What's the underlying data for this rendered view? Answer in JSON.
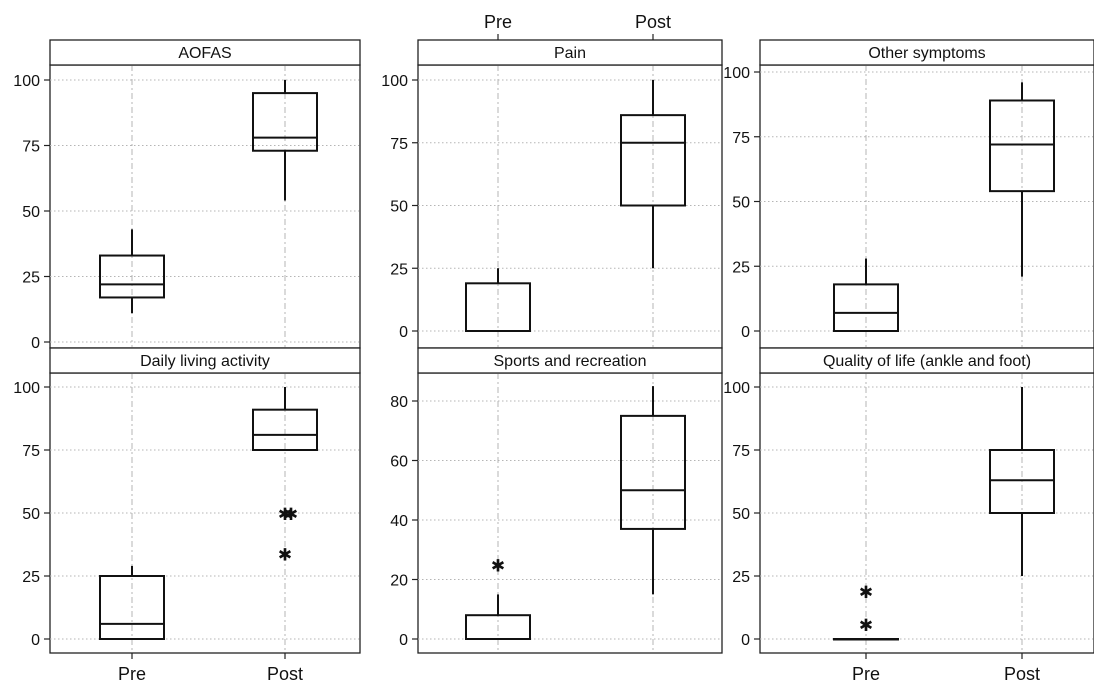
{
  "chart_data": [
    {
      "type": "box",
      "title": "AOFAS",
      "categories": [
        "Pre",
        "Post"
      ],
      "ylim": [
        0,
        100
      ],
      "yticks": [
        0,
        25,
        50,
        75,
        100
      ],
      "boxes": [
        {
          "category": "Pre",
          "min": 11,
          "q1": 17,
          "median": 22,
          "q3": 33,
          "max": 43,
          "outliers": []
        },
        {
          "category": "Post",
          "min": 54,
          "q1": 73,
          "median": 78,
          "q3": 95,
          "max": 100,
          "outliers": []
        }
      ]
    },
    {
      "type": "box",
      "title": "Pain",
      "categories": [
        "Pre",
        "Post"
      ],
      "ylim": [
        0,
        100
      ],
      "yticks": [
        0,
        25,
        50,
        75,
        100
      ],
      "boxes": [
        {
          "category": "Pre",
          "min": 0,
          "q1": 0,
          "median": 0,
          "q3": 19,
          "max": 25,
          "outliers": []
        },
        {
          "category": "Post",
          "min": 25,
          "q1": 50,
          "median": 75,
          "q3": 86,
          "max": 100,
          "outliers": []
        }
      ]
    },
    {
      "type": "box",
      "title": "Other symptoms",
      "categories": [
        "Pre",
        "Post"
      ],
      "ylim": [
        0,
        100
      ],
      "yticks": [
        0,
        25,
        50,
        75,
        100
      ],
      "boxes": [
        {
          "category": "Pre",
          "min": 0,
          "q1": 0,
          "median": 7,
          "q3": 18,
          "max": 28,
          "outliers": []
        },
        {
          "category": "Post",
          "min": 21,
          "q1": 54,
          "median": 72,
          "q3": 89,
          "max": 96,
          "outliers": []
        }
      ]
    },
    {
      "type": "box",
      "title": "Daily living activity",
      "categories": [
        "Pre",
        "Post"
      ],
      "ylim": [
        0,
        100
      ],
      "yticks": [
        0,
        25,
        50,
        75,
        100
      ],
      "boxes": [
        {
          "category": "Pre",
          "min": 0,
          "q1": 0,
          "median": 6,
          "q3": 25,
          "max": 29,
          "outliers": []
        },
        {
          "category": "Post",
          "min": 75,
          "q1": 75,
          "median": 81,
          "q3": 91,
          "max": 100,
          "outliers": [
            50,
            50,
            34
          ]
        }
      ]
    },
    {
      "type": "box",
      "title": "Sports and recreation",
      "categories": [
        "Pre",
        "Post"
      ],
      "ylim": [
        0,
        85
      ],
      "yticks": [
        0,
        20,
        40,
        60,
        80
      ],
      "boxes": [
        {
          "category": "Pre",
          "min": 0,
          "q1": 0,
          "median": 0,
          "q3": 8,
          "max": 15,
          "outliers": [
            25
          ]
        },
        {
          "category": "Post",
          "min": 15,
          "q1": 37,
          "median": 50,
          "q3": 75,
          "max": 85,
          "outliers": []
        }
      ]
    },
    {
      "type": "box",
      "title": "Quality of life (ankle and foot)",
      "categories": [
        "Pre",
        "Post"
      ],
      "ylim": [
        0,
        100
      ],
      "yticks": [
        0,
        25,
        50,
        75,
        100
      ],
      "boxes": [
        {
          "category": "Pre",
          "min": 0,
          "q1": 0,
          "median": 0,
          "q3": 0,
          "max": 0,
          "outliers": [
            19,
            6
          ]
        },
        {
          "category": "Post",
          "min": 25,
          "q1": 50,
          "median": 63,
          "q3": 75,
          "max": 100,
          "outliers": []
        }
      ]
    }
  ],
  "top_axis_labels": [
    "Pre",
    "Post"
  ],
  "bottom_axis_labels": [
    "Pre",
    "Post"
  ],
  "colors": {
    "box_stroke": "#111111",
    "grid": "#b5b5b5",
    "background": "#ffffff"
  }
}
